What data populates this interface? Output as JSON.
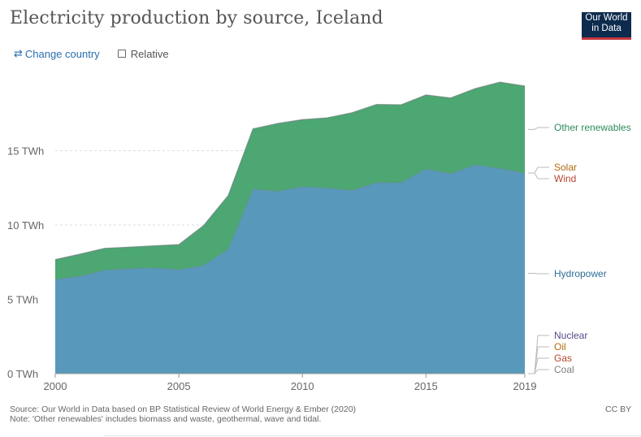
{
  "header": {
    "title": "Electricity production by source, Iceland",
    "logo_line1": "Our World",
    "logo_line2": "in Data"
  },
  "controls": {
    "change_country_icon": "⇄",
    "change_country_label": "Change country",
    "relative_label": "Relative"
  },
  "chart_data": {
    "type": "area",
    "stacked": true,
    "title": "Electricity production by source, Iceland",
    "xlabel": "",
    "ylabel": "",
    "unit": "TWh",
    "x": [
      2000,
      2001,
      2002,
      2003,
      2004,
      2005,
      2006,
      2007,
      2008,
      2009,
      2010,
      2011,
      2012,
      2013,
      2014,
      2015,
      2016,
      2017,
      2018,
      2019
    ],
    "ylim": [
      0,
      20
    ],
    "yticks": [
      0,
      5,
      10,
      15
    ],
    "ytick_labels": [
      "0 TWh",
      "5 TWh",
      "10 TWh",
      "15 TWh"
    ],
    "xticks": [
      2000,
      2005,
      2010,
      2015,
      2019
    ],
    "xtick_labels": [
      "2000",
      "2005",
      "2010",
      "2015",
      "2019"
    ],
    "series": [
      {
        "name": "Coal",
        "color": "#7f7f7f",
        "values": [
          0,
          0,
          0,
          0,
          0,
          0,
          0,
          0,
          0,
          0,
          0,
          0,
          0,
          0,
          0,
          0,
          0,
          0,
          0,
          0
        ]
      },
      {
        "name": "Gas",
        "color": "#b5462e",
        "values": [
          0,
          0,
          0,
          0,
          0,
          0,
          0,
          0,
          0,
          0,
          0,
          0,
          0,
          0,
          0,
          0,
          0,
          0,
          0,
          0
        ]
      },
      {
        "name": "Oil",
        "color": "#b06a10",
        "values": [
          0,
          0,
          0,
          0,
          0,
          0,
          0,
          0,
          0,
          0,
          0,
          0,
          0,
          0,
          0,
          0,
          0,
          0,
          0,
          0
        ]
      },
      {
        "name": "Nuclear",
        "color": "#5a4a8a",
        "values": [
          0,
          0,
          0,
          0,
          0,
          0,
          0,
          0,
          0,
          0,
          0,
          0,
          0,
          0,
          0,
          0,
          0,
          0,
          0,
          0
        ]
      },
      {
        "name": "Hydropower",
        "color": "#5899bb",
        "label_color": "#2d6f96",
        "values": [
          6.35,
          6.58,
          6.97,
          7.08,
          7.13,
          7.01,
          7.29,
          8.39,
          12.43,
          12.28,
          12.59,
          12.5,
          12.34,
          12.86,
          12.87,
          13.78,
          13.47,
          14.06,
          13.82,
          13.5
        ]
      },
      {
        "name": "Wind",
        "color": "#b5462e",
        "values": [
          0,
          0,
          0,
          0,
          0,
          0,
          0,
          0,
          0,
          0,
          0,
          0,
          0,
          0,
          0,
          0,
          0,
          0,
          0,
          0
        ]
      },
      {
        "name": "Solar",
        "color": "#b06a10",
        "values": [
          0,
          0,
          0,
          0,
          0,
          0,
          0,
          0,
          0,
          0,
          0,
          0,
          0,
          0,
          0,
          0,
          0,
          0,
          0,
          0
        ]
      },
      {
        "name": "Other renewables",
        "color": "#4ca773",
        "label_color": "#2e8a57",
        "values": [
          1.33,
          1.46,
          1.46,
          1.43,
          1.47,
          1.67,
          2.67,
          3.6,
          4.04,
          4.55,
          4.5,
          4.71,
          5.21,
          5.25,
          5.22,
          4.97,
          5.08,
          5.12,
          5.79,
          5.85
        ]
      }
    ],
    "grid": true
  },
  "footer": {
    "source": "Source: Our World in Data based on BP Statistical Review of World Energy & Ember (2020)",
    "note": "Note: 'Other renewables' includes biomass and waste, geothermal, wave and tidal.",
    "license": "CC BY"
  }
}
